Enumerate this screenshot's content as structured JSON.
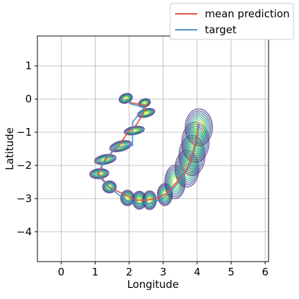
{
  "chart_data": {
    "type": "line",
    "title": "",
    "xlabel": "Longitude",
    "ylabel": "Latitude",
    "xlim": [
      -0.7,
      6.1
    ],
    "ylim": [
      -4.9,
      1.9
    ],
    "xticks": [
      0,
      1,
      2,
      3,
      4,
      5,
      6
    ],
    "yticks": [
      1,
      0,
      -1,
      -2,
      -3,
      -4
    ],
    "grid": true,
    "legend_position": "top-right (above axes)",
    "series": [
      {
        "name": "mean prediction",
        "color": "#d9544f",
        "x": [
          1.9,
          2.0,
          2.5,
          2.4,
          2.2,
          2.0,
          1.7,
          1.3,
          1.1,
          1.4,
          1.9,
          2.2,
          2.5,
          2.8,
          3.1,
          3.4,
          3.7,
          3.85,
          3.95,
          4.0,
          4.05
        ],
        "y": [
          0.0,
          -0.1,
          -0.2,
          -0.45,
          -0.8,
          -0.95,
          -1.4,
          -1.8,
          -2.25,
          -2.65,
          -2.9,
          -3.05,
          -3.05,
          -3.0,
          -2.85,
          -2.5,
          -2.1,
          -1.7,
          -1.3,
          -1.0,
          -0.75
        ]
      },
      {
        "name": "target",
        "color": "#4a8fc6",
        "x": [
          1.9,
          2.05,
          2.45,
          2.25,
          2.1,
          2.1,
          1.6,
          1.3,
          1.05,
          1.4,
          1.9,
          2.3,
          2.6,
          3.0,
          3.3,
          3.6,
          3.8,
          3.9,
          4.0,
          4.05
        ],
        "y": [
          0.0,
          -0.15,
          -0.25,
          -0.5,
          -0.7,
          -1.4,
          -1.45,
          -1.85,
          -2.25,
          -2.65,
          -3.05,
          -3.15,
          -3.15,
          -3.0,
          -2.7,
          -2.3,
          -2.0,
          -1.6,
          -1.2,
          -0.75
        ]
      }
    ],
    "uncertainty_ellipses": [
      {
        "x": 1.9,
        "y": 0.02,
        "rx": 0.2,
        "ry": 0.14,
        "angle": 20
      },
      {
        "x": 2.45,
        "y": -0.12,
        "rx": 0.18,
        "ry": 0.12,
        "angle": 20
      },
      {
        "x": 2.5,
        "y": -0.42,
        "rx": 0.26,
        "ry": 0.12,
        "angle": 15
      },
      {
        "x": 2.15,
        "y": -0.95,
        "rx": 0.3,
        "ry": 0.12,
        "angle": 10
      },
      {
        "x": 1.75,
        "y": -1.42,
        "rx": 0.33,
        "ry": 0.15,
        "angle": 15
      },
      {
        "x": 1.3,
        "y": -1.82,
        "rx": 0.32,
        "ry": 0.14,
        "angle": 10
      },
      {
        "x": 1.12,
        "y": -2.25,
        "rx": 0.28,
        "ry": 0.15,
        "angle": 5
      },
      {
        "x": 1.42,
        "y": -2.65,
        "rx": 0.2,
        "ry": 0.18,
        "angle": 0
      },
      {
        "x": 1.95,
        "y": -2.98,
        "rx": 0.2,
        "ry": 0.23,
        "angle": 0
      },
      {
        "x": 2.3,
        "y": -3.05,
        "rx": 0.2,
        "ry": 0.27,
        "angle": 0
      },
      {
        "x": 2.6,
        "y": -3.05,
        "rx": 0.2,
        "ry": 0.28,
        "angle": 0
      },
      {
        "x": 3.05,
        "y": -2.88,
        "rx": 0.22,
        "ry": 0.33,
        "angle": 0
      },
      {
        "x": 3.35,
        "y": -2.5,
        "rx": 0.3,
        "ry": 0.5,
        "angle": 0
      },
      {
        "x": 3.7,
        "y": -2.1,
        "rx": 0.35,
        "ry": 0.55,
        "angle": 0
      },
      {
        "x": 3.85,
        "y": -1.7,
        "rx": 0.38,
        "ry": 0.6,
        "angle": 0
      },
      {
        "x": 3.95,
        "y": -1.3,
        "rx": 0.4,
        "ry": 0.6,
        "angle": 0
      },
      {
        "x": 4.05,
        "y": -0.85,
        "rx": 0.4,
        "ry": 0.55,
        "angle": 0
      }
    ],
    "contour_colors": [
      "#4b2a7a",
      "#40498e",
      "#33638d",
      "#26828e",
      "#1fa088",
      "#3fbc73",
      "#84d44b",
      "#c8e020"
    ]
  }
}
